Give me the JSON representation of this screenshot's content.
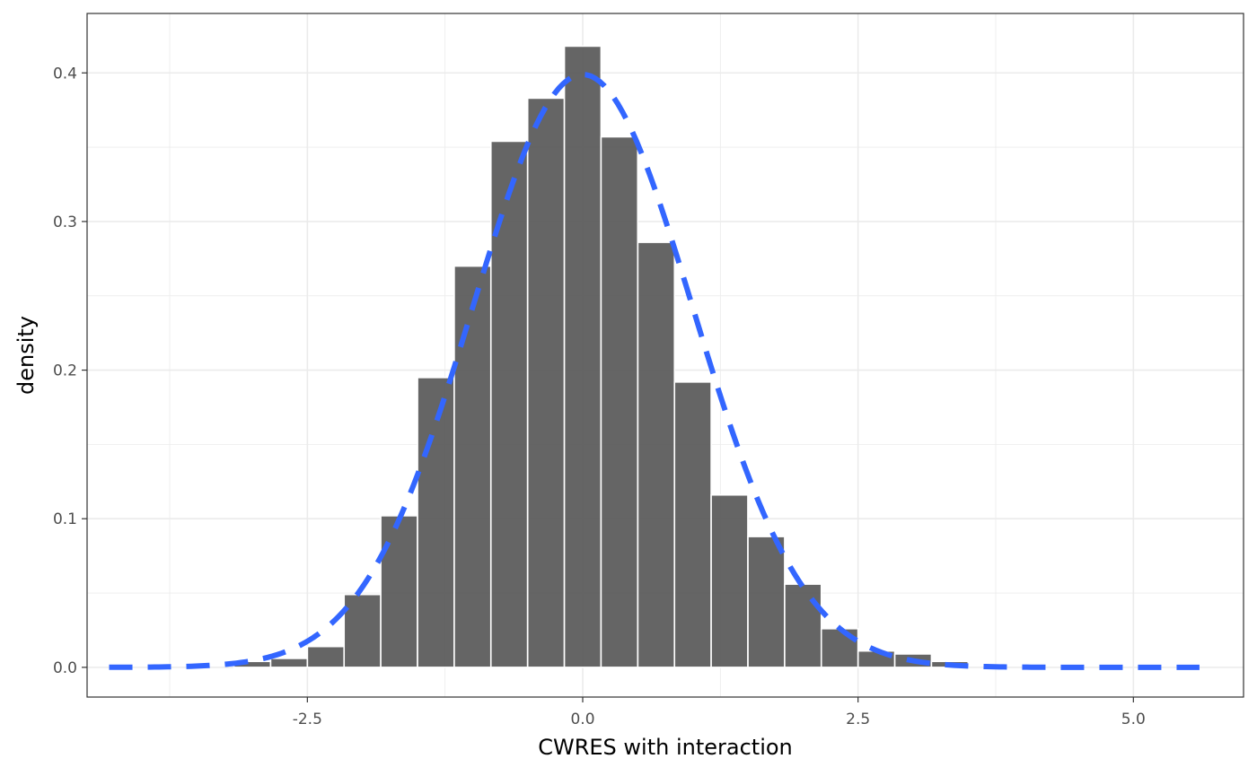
{
  "chart_data": {
    "type": "bar",
    "xlabel": "CWRES with interaction",
    "ylabel": "density",
    "xlim": [
      -4.5,
      6
    ],
    "ylim": [
      -0.02,
      0.44
    ],
    "grid": true,
    "x_ticks": [
      -2.5,
      0.0,
      2.5,
      5.0
    ],
    "x_tick_labels": [
      "-2.5",
      "0.0",
      "2.5",
      "5.0"
    ],
    "y_ticks": [
      0.0,
      0.1,
      0.2,
      0.3,
      0.4
    ],
    "y_tick_labels": [
      "0.0",
      "0.1",
      "0.2",
      "0.3",
      "0.4"
    ],
    "bin_width": 0.333,
    "bins": [
      {
        "center": -3.0,
        "value": 0.004
      },
      {
        "center": -2.667,
        "value": 0.006
      },
      {
        "center": -2.333,
        "value": 0.014
      },
      {
        "center": -2.0,
        "value": 0.049
      },
      {
        "center": -1.667,
        "value": 0.102
      },
      {
        "center": -1.333,
        "value": 0.195
      },
      {
        "center": -1.0,
        "value": 0.27
      },
      {
        "center": -0.667,
        "value": 0.354
      },
      {
        "center": -0.333,
        "value": 0.383
      },
      {
        "center": 0.0,
        "value": 0.418
      },
      {
        "center": 0.333,
        "value": 0.357
      },
      {
        "center": 0.667,
        "value": 0.286
      },
      {
        "center": 1.0,
        "value": 0.192
      },
      {
        "center": 1.333,
        "value": 0.116
      },
      {
        "center": 1.667,
        "value": 0.088
      },
      {
        "center": 2.0,
        "value": 0.056
      },
      {
        "center": 2.333,
        "value": 0.026
      },
      {
        "center": 2.667,
        "value": 0.011
      },
      {
        "center": 3.0,
        "value": 0.009
      },
      {
        "center": 3.333,
        "value": 0.004
      }
    ],
    "density_curve": {
      "type": "normal",
      "mean": 0,
      "sd": 1,
      "x_range": [
        -4.3,
        5.6
      ],
      "color": "#3366ff",
      "style": "dashed"
    },
    "bar_color": "#595959"
  }
}
